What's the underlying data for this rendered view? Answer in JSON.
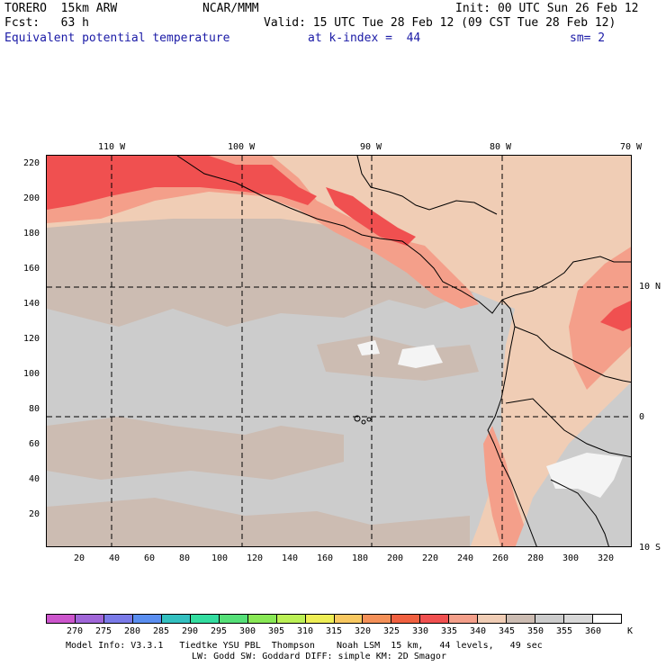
{
  "header": {
    "model": "TORERO  15km ARW",
    "center": "NCAR/MMM",
    "init": "Init: 00 UTC Sun 26 Feb 12",
    "fcst": "Fcst:   63 h",
    "valid": "Valid: 15 UTC Tue 28 Feb 12 (09 CST Tue 28 Feb 12)",
    "field": "Equivalent potential temperature",
    "level": "at k-index =  44",
    "smooth": "sm= 2"
  },
  "map": {
    "lon_labels": [
      "110 W",
      "100 W",
      "90 W",
      "80 W",
      "70 W"
    ],
    "lat_labels": [
      "10 N",
      "0",
      "10 S"
    ],
    "y_ticks": [
      "220",
      "200",
      "180",
      "160",
      "140",
      "120",
      "100",
      "80",
      "60",
      "40",
      "20"
    ],
    "x_ticks": [
      "20",
      "40",
      "60",
      "80",
      "100",
      "120",
      "140",
      "160",
      "180",
      "200",
      "220",
      "240",
      "260",
      "280",
      "300",
      "320"
    ],
    "field_colors": {
      "background": "#cccccc",
      "warm": "#ccbcb2",
      "tan": "#f0cdb5",
      "salmon": "#f49f8a",
      "red": "#f05050",
      "white": "#f4f4f4"
    }
  },
  "colorbar": {
    "labels": [
      "270",
      "275",
      "280",
      "285",
      "290",
      "295",
      "300",
      "305",
      "310",
      "315",
      "320",
      "325",
      "330",
      "335",
      "340",
      "345",
      "350",
      "355",
      "360"
    ],
    "unit": "K",
    "colors": [
      "#cc55cc",
      "#a066d8",
      "#7a7ae8",
      "#5a8ef0",
      "#33c0c0",
      "#33dda0",
      "#55e078",
      "#88e855",
      "#bbf055",
      "#eeee55",
      "#f8c860",
      "#f49058",
      "#f06040",
      "#f05050",
      "#f49f8a",
      "#f0cdb5",
      "#ccbcb2",
      "#cccccc",
      "#d8d8d8",
      "#ffffff"
    ]
  },
  "footer": {
    "line1": "Model Info: V3.3.1   Tiedtke YSU PBL  Thompson    Noah LSM  15 km,   44 levels,   49 sec",
    "line2": "LW: Godd SW: Goddard DIFF: simple KM: 2D Smagor"
  }
}
